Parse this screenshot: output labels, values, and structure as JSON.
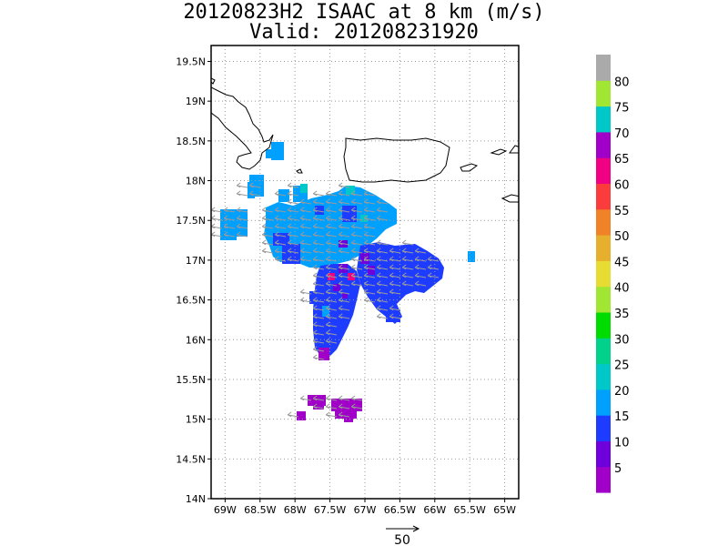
{
  "header": {
    "title_line1": "20120823H2 ISAAC at 8 km (m/s)",
    "title_line2": "Valid: 201208231920"
  },
  "map": {
    "lat_labels": [
      "19.5N",
      "19N",
      "18.5N",
      "18N",
      "17.5N",
      "17N",
      "16.5N",
      "16N",
      "15.5N",
      "15N",
      "14.5N",
      "14N"
    ],
    "lat_values": [
      19.5,
      19,
      18.5,
      18,
      17.5,
      17,
      16.5,
      16,
      15.5,
      15,
      14.5,
      14
    ],
    "lon_labels": [
      "69W",
      "68.5W",
      "68W",
      "67.5W",
      "67W",
      "66.5W",
      "66W",
      "65.5W",
      "65W"
    ],
    "lon_values": [
      -69,
      -68.5,
      -68,
      -67.5,
      -67,
      -66.5,
      -66,
      -65.5,
      -65
    ],
    "extent": {
      "lon_min": -69.2,
      "lon_max": -64.8,
      "lat_min": 14.0,
      "lat_max": 19.7
    }
  },
  "colorbar": {
    "labels": [
      "5",
      "10",
      "15",
      "20",
      "25",
      "30",
      "35",
      "40",
      "45",
      "50",
      "55",
      "60",
      "65",
      "70",
      "75",
      "80"
    ],
    "colors": [
      "#a000c8",
      "#6e00dc",
      "#1e3cff",
      "#00a0ff",
      "#00c8c8",
      "#00d28c",
      "#00dc00",
      "#a0e632",
      "#e6dc32",
      "#e6af2d",
      "#f08228",
      "#fa3c3c",
      "#f00082",
      "#a000c8",
      "#00c8c8",
      "#a0e632",
      "#aaaaaa"
    ]
  },
  "reference_vector": {
    "label": "50"
  },
  "colors": {
    "land_outline": "#000000",
    "grid": "#999999",
    "wind_barb": "#9a9a9a"
  }
}
